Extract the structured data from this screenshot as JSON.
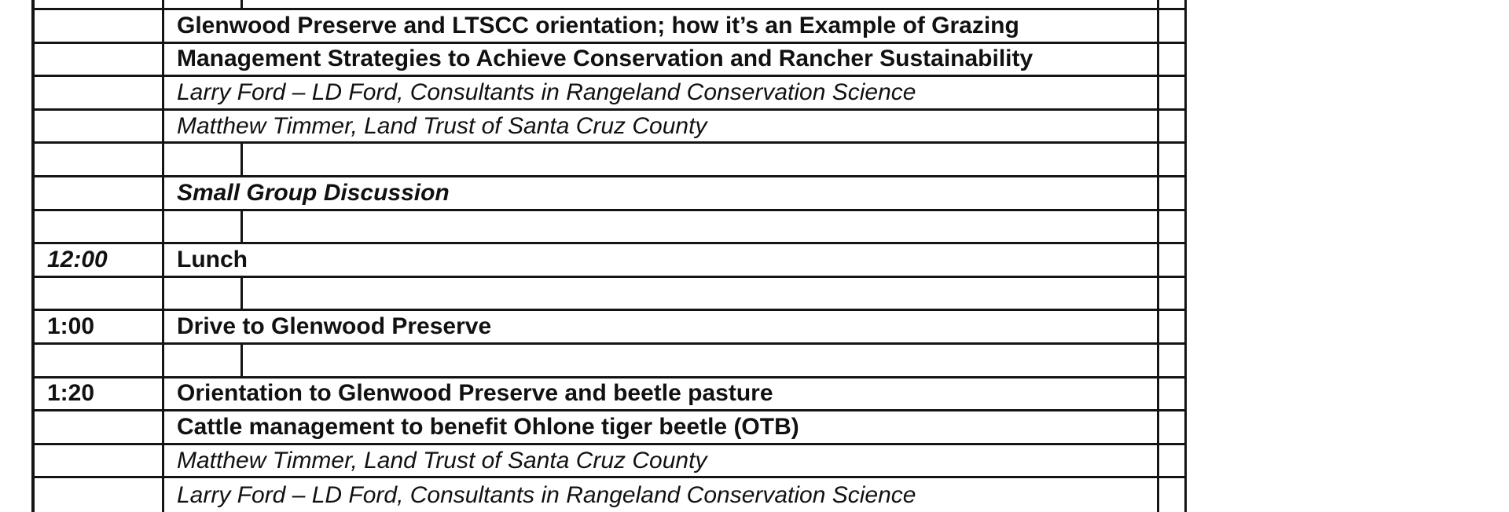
{
  "document": {
    "kind_label": "workshop-agenda-table"
  },
  "colors": {
    "border": "#141414",
    "text": "#111111",
    "background": "#ffffff"
  },
  "table": {
    "rows": [
      {
        "time": "",
        "text": ""
      },
      {
        "time": "",
        "text": "Glenwood Preserve and LTSCC orientation; how it’s an Example of Grazing"
      },
      {
        "time": "",
        "text": "Management Strategies to Achieve Conservation and Rancher Sustainability"
      },
      {
        "time": "",
        "text": "Larry Ford – LD Ford, Consultants in Rangeland Conservation Science"
      },
      {
        "time": "",
        "text": "Matthew Timmer, Land Trust of Santa Cruz County"
      },
      {
        "time": "",
        "text": ""
      },
      {
        "time": "",
        "text": "Small Group Discussion"
      },
      {
        "time": "",
        "text": ""
      },
      {
        "time": "12:00",
        "text": "Lunch"
      },
      {
        "time": "",
        "text": ""
      },
      {
        "time": "1:00",
        "text": "Drive to Glenwood Preserve"
      },
      {
        "time": "",
        "text": ""
      },
      {
        "time": "1:20",
        "text": "Orientation to Glenwood Preserve and beetle pasture"
      },
      {
        "time": "",
        "text": "Cattle management to benefit Ohlone tiger beetle (OTB)"
      },
      {
        "time": "",
        "text": "Matthew Timmer, Land Trust of Santa Cruz County"
      },
      {
        "time": "",
        "text": "Larry Ford – LD Ford, Consultants in Rangeland Conservation Science"
      }
    ]
  }
}
